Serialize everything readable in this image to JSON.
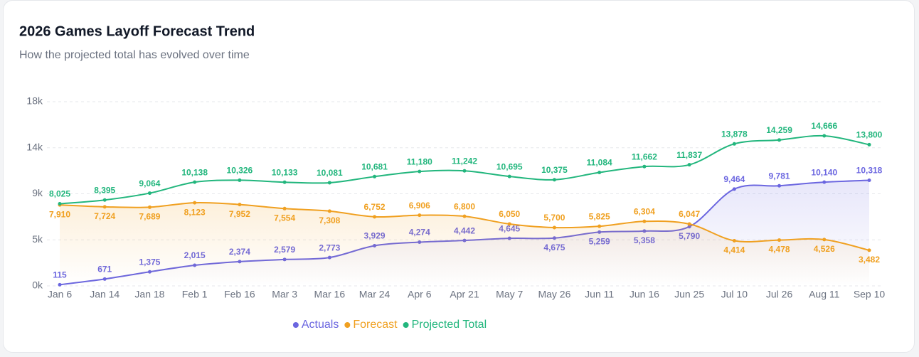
{
  "chart_data": {
    "type": "line",
    "title": "2026 Games Layoff Forecast Trend",
    "subtitle": "How the projected total has evolved over time",
    "categories": [
      "Jan 6",
      "Jan 14",
      "Jan 18",
      "Feb 1",
      "Feb 16",
      "Mar 3",
      "Mar 16",
      "Mar 24",
      "Apr 6",
      "Apr 21",
      "May 7",
      "May 26",
      "Jun 11",
      "Jun 16",
      "Jun 25",
      "Jul 10",
      "Jul 26",
      "Aug 11",
      "Sep 10"
    ],
    "ylim": [
      0,
      18000
    ],
    "yticks": [
      {
        "value": 0,
        "label": "0k"
      },
      {
        "value": 4500,
        "label": "5k"
      },
      {
        "value": 9000,
        "label": "9k"
      },
      {
        "value": 13500,
        "label": "14k"
      },
      {
        "value": 18000,
        "label": "18k"
      }
    ],
    "grid": true,
    "legend": "bottom",
    "series": [
      {
        "name": "Actuals",
        "color": "#6b66e0",
        "values": [
          115,
          671,
          1375,
          2015,
          2374,
          2579,
          2773,
          3929,
          4274,
          4442,
          4645,
          4675,
          5259,
          5358,
          5790,
          9464,
          9781,
          10140,
          10318
        ],
        "value_labels": [
          "115",
          "671",
          "1,375",
          "2,015",
          "2,374",
          "2,579",
          "2,773",
          "3,929",
          "4,274",
          "4,442",
          "4,645",
          "4,675",
          "5,259",
          "5,358",
          "5,790",
          "9,464",
          "9,781",
          "10,140",
          "10,318"
        ]
      },
      {
        "name": "Forecast",
        "color": "#f0a020",
        "values": [
          7910,
          7724,
          7689,
          8123,
          7952,
          7554,
          7308,
          6752,
          6906,
          6800,
          6050,
          5700,
          5825,
          6304,
          6047,
          4414,
          4478,
          4526,
          3482
        ],
        "value_labels": [
          "7,910",
          "7,724",
          "7,689",
          "8,123",
          "7,952",
          "7,554",
          "7,308",
          "6,752",
          "6,906",
          "6,800",
          "6,050",
          "5,700",
          "5,825",
          "6,304",
          "6,047",
          "4,414",
          "4,478",
          "4,526",
          "3,482"
        ]
      },
      {
        "name": "Projected Total",
        "color": "#22b67d",
        "values": [
          8025,
          8395,
          9064,
          10138,
          10326,
          10133,
          10081,
          10681,
          11180,
          11242,
          10695,
          10375,
          11084,
          11662,
          11837,
          13878,
          14259,
          14666,
          13800
        ],
        "value_labels": [
          "8,025",
          "8,395",
          "9,064",
          "10,138",
          "10,326",
          "10,133",
          "10,081",
          "10,681",
          "11,180",
          "11,242",
          "10,695",
          "10,375",
          "11,084",
          "11,662",
          "11,837",
          "13,878",
          "14,259",
          "14,666",
          "13,800"
        ]
      }
    ]
  }
}
